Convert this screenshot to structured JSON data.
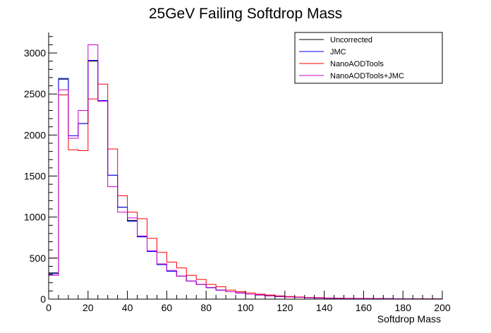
{
  "chart_data": {
    "type": "histogram",
    "title": "25GeV Failing Softdrop Mass",
    "xlabel": "Softdrop Mass",
    "ylabel": "",
    "xlim": [
      0,
      200
    ],
    "ylim": [
      0,
      3250
    ],
    "x_ticks": [
      "0",
      "20",
      "40",
      "60",
      "80",
      "100",
      "120",
      "140",
      "160",
      "180",
      "200"
    ],
    "y_ticks": [
      "0",
      "500",
      "1000",
      "1500",
      "2000",
      "2500",
      "3000"
    ],
    "bin_width": 5,
    "grid": false,
    "legend_position": "top-right",
    "series": [
      {
        "name": "Uncorrected",
        "color": "#000000",
        "values": [
          320,
          2680,
          1990,
          2140,
          2900,
          2420,
          1510,
          1120,
          960,
          760,
          580,
          430,
          340,
          280,
          220,
          180,
          140,
          110,
          90,
          75,
          60,
          50,
          40,
          32,
          26,
          22,
          18,
          14,
          12,
          10,
          8,
          7,
          6,
          5,
          5,
          4,
          3,
          3,
          2,
          2
        ]
      },
      {
        "name": "JMC",
        "color": "#0000ff",
        "values": [
          310,
          2690,
          1990,
          2140,
          2910,
          2420,
          1510,
          1120,
          950,
          760,
          580,
          420,
          340,
          280,
          220,
          180,
          140,
          110,
          90,
          75,
          60,
          50,
          40,
          32,
          26,
          22,
          18,
          14,
          12,
          10,
          8,
          7,
          6,
          5,
          5,
          4,
          3,
          3,
          2,
          2
        ]
      },
      {
        "name": "NanoAODTools",
        "color": "#ff0000",
        "values": [
          500,
          2490,
          1820,
          1810,
          2440,
          2620,
          1830,
          1260,
          1060,
          980,
          740,
          570,
          450,
          380,
          290,
          240,
          180,
          150,
          110,
          90,
          75,
          60,
          50,
          40,
          32,
          26,
          22,
          18,
          14,
          12,
          10,
          8,
          7,
          6,
          5,
          4,
          4,
          3,
          3,
          2
        ]
      },
      {
        "name": "NanoAODTools+JMC",
        "color": "#cc00cc",
        "values": [
          290,
          2550,
          1960,
          2300,
          3100,
          2410,
          1370,
          1060,
          990,
          770,
          590,
          430,
          350,
          280,
          220,
          180,
          140,
          110,
          90,
          75,
          60,
          50,
          40,
          32,
          26,
          22,
          18,
          14,
          12,
          10,
          8,
          7,
          6,
          5,
          5,
          4,
          3,
          3,
          2,
          2
        ]
      }
    ]
  }
}
